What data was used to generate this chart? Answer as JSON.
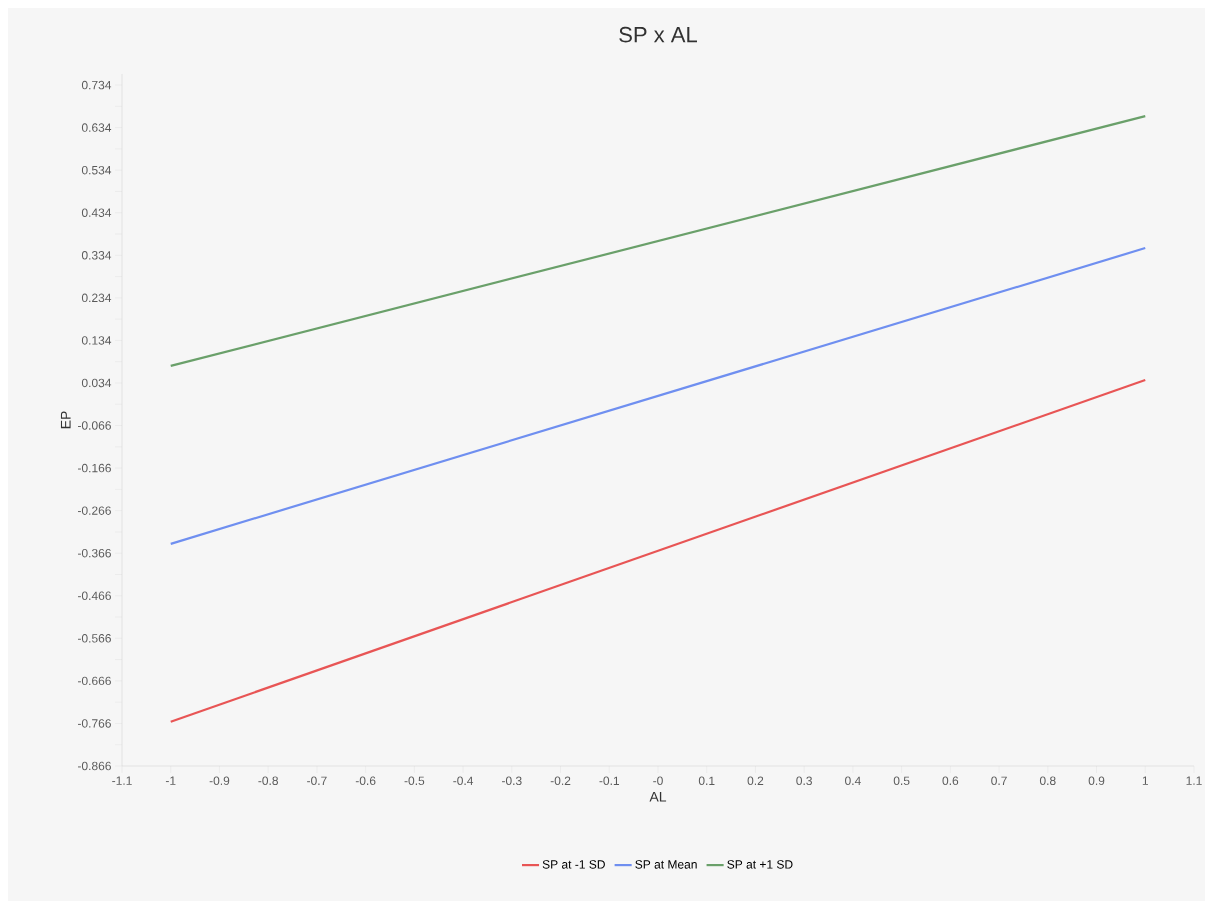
{
  "chart_data": {
    "type": "line",
    "title": "SP x AL",
    "xlabel": "AL",
    "ylabel": "EP",
    "x": [
      -1,
      1
    ],
    "series": [
      {
        "name": "SP at -1 SD",
        "color": "#e85555",
        "values": [
          -0.762,
          0.041
        ]
      },
      {
        "name": "SP at Mean",
        "color": "#6f8ff0",
        "values": [
          -0.344,
          0.351
        ]
      },
      {
        "name": "SP at +1 SD",
        "color": "#6aa06a",
        "values": [
          0.074,
          0.661
        ]
      }
    ],
    "xlim": [
      -1.1,
      1.1
    ],
    "xticks": [
      -1.1,
      -1,
      -0.9,
      -0.8,
      -0.7,
      -0.6,
      -0.5,
      -0.4,
      -0.3,
      -0.2,
      -0.1,
      {
        "value": 0,
        "label": "-0"
      },
      0.1,
      0.2,
      0.3,
      0.4,
      0.5,
      0.6,
      0.7,
      0.8,
      0.9,
      1,
      1.1
    ],
    "ylim": [
      -0.866,
      0.76
    ],
    "yticks": [
      -0.866,
      -0.766,
      -0.666,
      -0.566,
      -0.466,
      -0.366,
      -0.266,
      -0.166,
      -0.066,
      0.034,
      0.134,
      0.234,
      0.334,
      0.434,
      0.534,
      0.634,
      0.734
    ],
    "grid": false,
    "legend": "bottom",
    "marker": "none",
    "line_style": "solid"
  }
}
